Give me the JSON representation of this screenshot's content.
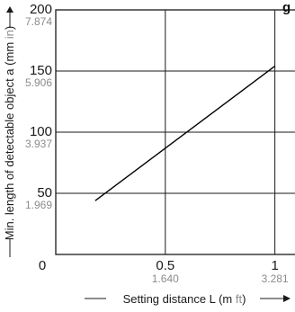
{
  "title_fragment": "g",
  "chart_data": {
    "type": "line",
    "title": "",
    "xlabel": "Setting distance L",
    "xlabel_units_main": "(m ",
    "xlabel_units_sub": "ft",
    "xlabel_units_close": ")",
    "ylabel": "Min. length of detectable object a",
    "ylabel_units_main": "(mm ",
    "ylabel_units_sub": "in",
    "ylabel_units_close": ")",
    "xlim": [
      0,
      1.1
    ],
    "ylim": [
      0,
      200
    ],
    "x_ticks": [
      {
        "value": 0,
        "label": "0",
        "sub": ""
      },
      {
        "value": 0.5,
        "label": "0.5",
        "sub": "1.640"
      },
      {
        "value": 1,
        "label": "1",
        "sub": "3.281"
      }
    ],
    "y_ticks": [
      {
        "value": 200,
        "label": "200",
        "sub": "7.874"
      },
      {
        "value": 150,
        "label": "150",
        "sub": "5.906"
      },
      {
        "value": 100,
        "label": "100",
        "sub": "3.937"
      },
      {
        "value": 50,
        "label": "50",
        "sub": "1.969"
      }
    ],
    "grid": true,
    "series": [
      {
        "x": [
          0.18,
          1.0
        ],
        "y": [
          44,
          154
        ]
      }
    ]
  }
}
